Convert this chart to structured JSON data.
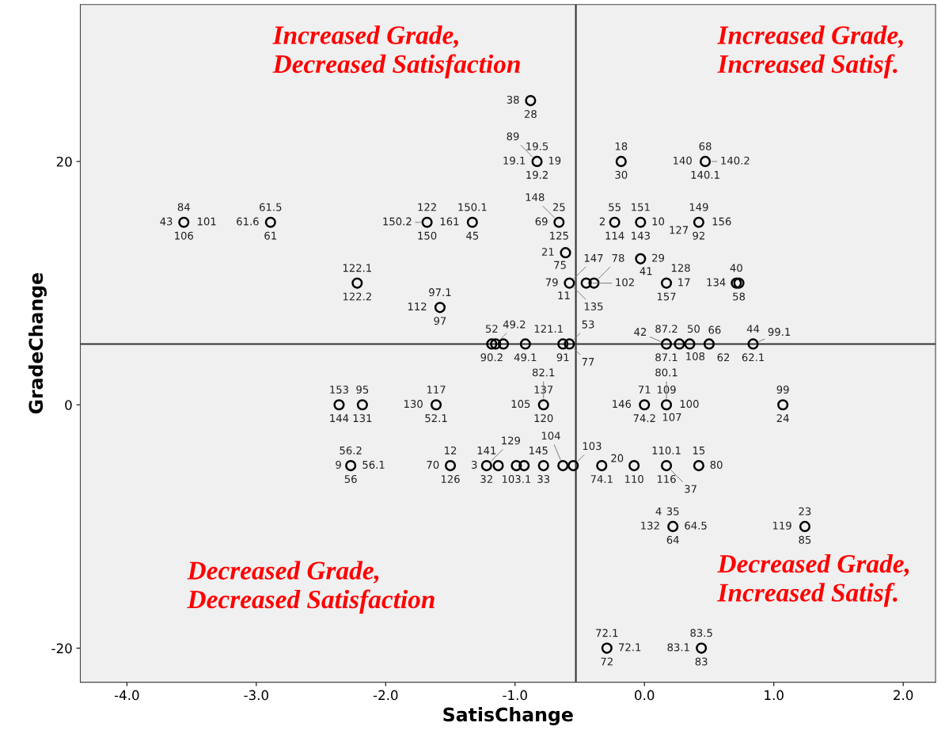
{
  "chart_data": {
    "type": "scatter",
    "xlabel": "SatisChange",
    "ylabel": "GradeChange",
    "xlim": [
      -4.36,
      2.25
    ],
    "ylim": [
      -22.8,
      32.9
    ],
    "xticks": [
      {
        "value": -4,
        "label": "-4.0"
      },
      {
        "value": -3,
        "label": "-3.0"
      },
      {
        "value": -2,
        "label": "-2.0"
      },
      {
        "value": -1,
        "label": "-1.0"
      },
      {
        "value": 0,
        "label": "0.0"
      },
      {
        "value": 1,
        "label": "1.0"
      },
      {
        "value": 2,
        "label": "2.0"
      }
    ],
    "yticks": [
      -20,
      0,
      20
    ],
    "grid": false,
    "marker": "circle",
    "ref_lines": [
      {
        "axis": "x",
        "value": -0.53,
        "color": "#333333"
      },
      {
        "axis": "y",
        "value": 5,
        "color": "#333333"
      }
    ],
    "series": [
      {
        "color": "#000000",
        "x": [
          -3.56,
          -2.89,
          -2.22,
          -1.68,
          -1.33,
          -1.58,
          -0.88,
          -0.83,
          -0.66,
          -0.61,
          -0.58,
          -0.18,
          0.47,
          -0.23,
          -0.03,
          0.42,
          -0.03,
          0.17,
          -0.45,
          -0.39,
          0.71,
          0.73,
          -1.18,
          -1.15,
          -1.09,
          -0.92,
          -0.63,
          -0.58,
          0.17,
          0.27,
          0.35,
          0.5,
          0.84,
          -2.36,
          -2.18,
          -1.61,
          -0.78,
          0.0,
          0.17,
          1.07,
          -2.27,
          -1.5,
          -1.22,
          -1.13,
          -0.99,
          -0.93,
          -0.78,
          -0.63,
          -0.55,
          -0.33,
          -0.08,
          0.17,
          0.42,
          0.22,
          1.24,
          -0.29,
          0.44
        ],
        "values": [
          15,
          15,
          10,
          15,
          15,
          8,
          25,
          20,
          15,
          12.5,
          10,
          20,
          20,
          15,
          15,
          15,
          12,
          10,
          10,
          10,
          10,
          10,
          5,
          5,
          5,
          5,
          5,
          5,
          5,
          5,
          5,
          5,
          5,
          0,
          0,
          0,
          0,
          0,
          0,
          0,
          -5,
          -5,
          -5,
          -5,
          -5,
          -5,
          -5,
          -5,
          -5,
          -5,
          -5,
          -5,
          -5,
          -10,
          -10,
          -20,
          -20
        ]
      }
    ],
    "annotations": [
      "Increased Grade,\nDecreased Satisfaction",
      "Increased Grade,\nIncreased Satisf.",
      "Decreased Grade,\nDecreased Satisfaction",
      "Decreased Grade,\nIncreased Satisf.",
      {
        "text": "84",
        "x": -3.56,
        "y": 15
      },
      {
        "text": "106",
        "x": -3.56,
        "y": 15
      },
      {
        "text": "43",
        "x": -3.56,
        "y": 15
      },
      {
        "text": "101",
        "x": -3.56,
        "y": 15
      },
      {
        "text": "61.5",
        "x": -2.89,
        "y": 15
      },
      {
        "text": "61",
        "x": -2.89,
        "y": 15
      },
      {
        "text": "61.6",
        "x": -2.89,
        "y": 15
      },
      {
        "text": "122.1",
        "x": -2.22,
        "y": 10
      },
      {
        "text": "122.2",
        "x": -2.22,
        "y": 10
      },
      {
        "text": "122",
        "x": -1.68,
        "y": 15
      },
      {
        "text": "150",
        "x": -1.68,
        "y": 15
      },
      {
        "text": "150.2",
        "x": -1.68,
        "y": 15
      },
      {
        "text": "150.1",
        "x": -1.33,
        "y": 15
      },
      {
        "text": "45",
        "x": -1.33,
        "y": 15
      },
      {
        "text": "161",
        "x": -1.33,
        "y": 15
      },
      {
        "text": "97.1",
        "x": -1.58,
        "y": 8
      },
      {
        "text": "97",
        "x": -1.58,
        "y": 8
      },
      {
        "text": "112",
        "x": -1.58,
        "y": 8
      },
      {
        "text": "28",
        "x": -0.88,
        "y": 25
      },
      {
        "text": "38",
        "x": -0.88,
        "y": 25
      },
      {
        "text": "19.5",
        "x": -0.83,
        "y": 20
      },
      {
        "text": "19.2",
        "x": -0.83,
        "y": 20
      },
      {
        "text": "19.1",
        "x": -0.83,
        "y": 20
      },
      {
        "text": "19",
        "x": -0.83,
        "y": 20
      },
      {
        "text": "89",
        "x": -0.83,
        "y": 20
      },
      {
        "text": "25",
        "x": -0.66,
        "y": 15
      },
      {
        "text": "125",
        "x": -0.66,
        "y": 15
      },
      {
        "text": "69",
        "x": -0.66,
        "y": 15
      },
      {
        "text": "148",
        "x": -0.66,
        "y": 15
      },
      {
        "text": "21",
        "x": -0.61,
        "y": 12.5
      },
      {
        "text": "75",
        "x": -0.61,
        "y": 12.5
      },
      {
        "text": "79",
        "x": -0.58,
        "y": 10
      },
      {
        "text": "11",
        "x": -0.58,
        "y": 10
      },
      {
        "text": "147",
        "x": -0.58,
        "y": 10
      },
      {
        "text": "135",
        "x": -0.58,
        "y": 10
      },
      {
        "text": "102",
        "x": -0.45,
        "y": 10
      },
      {
        "text": "78",
        "x": -0.39,
        "y": 10
      },
      {
        "text": "18",
        "x": -0.18,
        "y": 20
      },
      {
        "text": "30",
        "x": -0.18,
        "y": 20
      },
      {
        "text": "68",
        "x": 0.47,
        "y": 20
      },
      {
        "text": "140.1",
        "x": 0.47,
        "y": 20
      },
      {
        "text": "140",
        "x": 0.47,
        "y": 20
      },
      {
        "text": "140.2",
        "x": 0.47,
        "y": 20
      },
      {
        "text": "55",
        "x": -0.23,
        "y": 15
      },
      {
        "text": "2",
        "x": -0.23,
        "y": 15
      },
      {
        "text": "114",
        "x": -0.23,
        "y": 15
      },
      {
        "text": "151",
        "x": -0.03,
        "y": 15
      },
      {
        "text": "143",
        "x": -0.03,
        "y": 15
      },
      {
        "text": "10",
        "x": -0.03,
        "y": 15
      },
      {
        "text": "149",
        "x": 0.42,
        "y": 15
      },
      {
        "text": "92",
        "x": 0.42,
        "y": 15
      },
      {
        "text": "156",
        "x": 0.42,
        "y": 15
      },
      {
        "text": "127",
        "x": 0.42,
        "y": 15
      },
      {
        "text": "29",
        "x": -0.03,
        "y": 12
      },
      {
        "text": "41",
        "x": -0.03,
        "y": 12
      },
      {
        "text": "157",
        "x": 0.17,
        "y": 10
      },
      {
        "text": "17",
        "x": 0.17,
        "y": 10
      },
      {
        "text": "128",
        "x": 0.17,
        "y": 10
      },
      {
        "text": "40",
        "x": 0.71,
        "y": 10
      },
      {
        "text": "58",
        "x": 0.73,
        "y": 10
      },
      {
        "text": "134",
        "x": 0.73,
        "y": 10
      },
      {
        "text": "52",
        "x": -1.18,
        "y": 5
      },
      {
        "text": "90.2",
        "x": -1.18,
        "y": 5
      },
      {
        "text": "49.2",
        "x": -1.15,
        "y": 5
      },
      {
        "text": "49.1",
        "x": -0.92,
        "y": 5
      },
      {
        "text": "121.1",
        "x": -0.63,
        "y": 5
      },
      {
        "text": "91",
        "x": -0.63,
        "y": 5
      },
      {
        "text": "53",
        "x": -0.58,
        "y": 5
      },
      {
        "text": "77",
        "x": -0.58,
        "y": 5
      },
      {
        "text": "87.2",
        "x": 0.17,
        "y": 5
      },
      {
        "text": "87.1",
        "x": 0.17,
        "y": 5
      },
      {
        "text": "42",
        "x": 0.17,
        "y": 5
      },
      {
        "text": "50",
        "x": 0.27,
        "y": 5
      },
      {
        "text": "108",
        "x": 0.35,
        "y": 5
      },
      {
        "text": "66",
        "x": 0.5,
        "y": 5
      },
      {
        "text": "62",
        "x": 0.5,
        "y": 5
      },
      {
        "text": "44",
        "x": 0.84,
        "y": 5
      },
      {
        "text": "62.1",
        "x": 0.84,
        "y": 5
      },
      {
        "text": "99.1",
        "x": 0.84,
        "y": 5
      },
      {
        "text": "153",
        "x": -2.36,
        "y": 0
      },
      {
        "text": "144",
        "x": -2.36,
        "y": 0
      },
      {
        "text": "131",
        "x": -2.18,
        "y": 0
      },
      {
        "text": "95",
        "x": -2.18,
        "y": 0
      },
      {
        "text": "117",
        "x": -1.61,
        "y": 0
      },
      {
        "text": "52.1",
        "x": -1.61,
        "y": 0
      },
      {
        "text": "130",
        "x": -1.61,
        "y": 0
      },
      {
        "text": "137",
        "x": -0.78,
        "y": 0
      },
      {
        "text": "120",
        "x": -0.78,
        "y": 0
      },
      {
        "text": "105",
        "x": -0.78,
        "y": 0
      },
      {
        "text": "82.1",
        "x": -0.78,
        "y": 0
      },
      {
        "text": "71",
        "x": 0.0,
        "y": 0
      },
      {
        "text": "74.2",
        "x": 0.0,
        "y": 0
      },
      {
        "text": "146",
        "x": 0.0,
        "y": 0
      },
      {
        "text": "109",
        "x": 0.17,
        "y": 0
      },
      {
        "text": "107",
        "x": 0.17,
        "y": 0
      },
      {
        "text": "100",
        "x": 0.17,
        "y": 0
      },
      {
        "text": "80.1",
        "x": 0.17,
        "y": 0
      },
      {
        "text": "99",
        "x": 1.07,
        "y": 0
      },
      {
        "text": "24",
        "x": 1.07,
        "y": 0
      },
      {
        "text": "56.2",
        "x": -2.27,
        "y": -5
      },
      {
        "text": "9",
        "x": -2.27,
        "y": -5
      },
      {
        "text": "56",
        "x": -2.27,
        "y": -5
      },
      {
        "text": "56.1",
        "x": -2.27,
        "y": -5
      },
      {
        "text": "12",
        "x": -1.5,
        "y": -5
      },
      {
        "text": "126",
        "x": -1.5,
        "y": -5
      },
      {
        "text": "70",
        "x": -1.5,
        "y": -5
      },
      {
        "text": "141",
        "x": -1.22,
        "y": -5
      },
      {
        "text": "32",
        "x": -1.22,
        "y": -5
      },
      {
        "text": "129",
        "x": -1.22,
        "y": -5
      },
      {
        "text": "3",
        "x": -1.22,
        "y": -5
      },
      {
        "text": "103.1",
        "x": -0.99,
        "y": -5
      },
      {
        "text": "145",
        "x": -0.93,
        "y": -5
      },
      {
        "text": "33",
        "x": -0.78,
        "y": -5
      },
      {
        "text": "104",
        "x": -0.63,
        "y": -5
      },
      {
        "text": "103",
        "x": -0.55,
        "y": -5
      },
      {
        "text": "74.1",
        "x": -0.33,
        "y": -5
      },
      {
        "text": "20",
        "x": -0.33,
        "y": -5
      },
      {
        "text": "110",
        "x": -0.08,
        "y": -5
      },
      {
        "text": "110.1",
        "x": 0.17,
        "y": -5
      },
      {
        "text": "116",
        "x": 0.17,
        "y": -5
      },
      {
        "text": "37",
        "x": 0.17,
        "y": -5
      },
      {
        "text": "15",
        "x": 0.42,
        "y": -5
      },
      {
        "text": "80",
        "x": 0.42,
        "y": -5
      },
      {
        "text": "35",
        "x": 0.22,
        "y": -10
      },
      {
        "text": "64",
        "x": 0.22,
        "y": -10
      },
      {
        "text": "132",
        "x": 0.22,
        "y": -10
      },
      {
        "text": "64.5",
        "x": 0.22,
        "y": -10
      },
      {
        "text": "4",
        "x": 0.22,
        "y": -10
      },
      {
        "text": "23",
        "x": 1.24,
        "y": -10
      },
      {
        "text": "85",
        "x": 1.24,
        "y": -10
      },
      {
        "text": "119",
        "x": 1.24,
        "y": -10
      },
      {
        "text": "72.1",
        "x": -0.29,
        "y": -20
      },
      {
        "text": "72",
        "x": -0.29,
        "y": -20
      },
      {
        "text": "72.1",
        "x": -0.29,
        "y": -20
      },
      {
        "text": "83.5",
        "x": 0.44,
        "y": -20
      },
      {
        "text": "83",
        "x": 0.44,
        "y": -20
      },
      {
        "text": "83.1",
        "x": 0.44,
        "y": -20
      }
    ]
  }
}
